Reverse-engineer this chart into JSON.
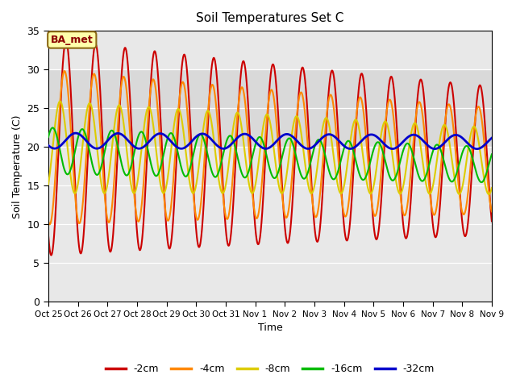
{
  "title": "Soil Temperatures Set C",
  "xlabel": "Time",
  "ylabel": "Soil Temperature (C)",
  "ylim": [
    0,
    35
  ],
  "xlim": [
    0,
    360
  ],
  "annotation": "BA_met",
  "tick_positions": [
    0,
    24,
    48,
    72,
    96,
    120,
    144,
    168,
    192,
    216,
    240,
    264,
    288,
    312,
    336,
    360
  ],
  "tick_labels": [
    "Oct 25",
    "Oct 26",
    "Oct 27",
    "Oct 28",
    "Oct 29",
    "Oct 30",
    "Oct 31",
    "Nov 1",
    "Nov 2",
    "Nov 3",
    "Nov 4",
    "Nov 5",
    "Nov 6",
    "Nov 7",
    "Nov 8",
    "Nov 9"
  ],
  "series_colors": [
    "#CC0000",
    "#FF8800",
    "#DDCC00",
    "#00BB00",
    "#0000CC"
  ],
  "series_labels": [
    "-2cm",
    "-4cm",
    "-8cm",
    "-16cm",
    "-32cm"
  ],
  "series_linewidths": [
    1.5,
    1.5,
    1.5,
    1.5,
    2.0
  ],
  "yticks": [
    0,
    5,
    10,
    15,
    20,
    25,
    30,
    35
  ],
  "bg_color": "#E8E8E8",
  "band_color": "#D0D0D0",
  "band_y1": 20,
  "band_y2": 30
}
